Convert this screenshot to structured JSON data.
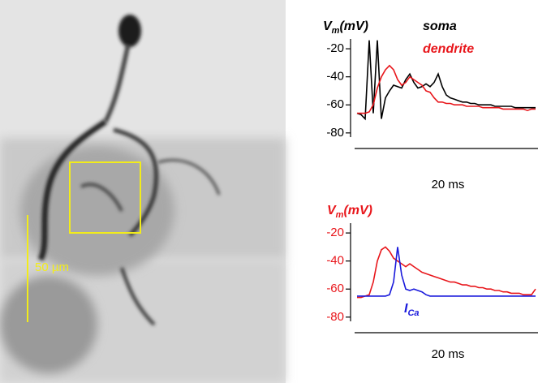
{
  "image": {
    "scale_bar_label": "50 µm"
  },
  "chart_data": [
    {
      "type": "line",
      "y_label": {
        "main": "V",
        "sub": "m",
        "unit": "(mV)"
      },
      "x_scale_label": "20 ms",
      "ylim": [
        -83,
        -13
      ],
      "yticks": [
        -20,
        -40,
        -60,
        -80
      ],
      "series": [
        {
          "name": "soma",
          "color": "#000000",
          "values": [
            -66,
            -67,
            -70,
            -14,
            -66,
            -14,
            -70,
            -55,
            -50,
            -46,
            -47,
            -48,
            -42,
            -38,
            -44,
            -48,
            -47,
            -45,
            -47,
            -44,
            -38,
            -47,
            -53,
            -55,
            -56,
            -57,
            -58,
            -58,
            -59,
            -59,
            -60,
            -60,
            -60,
            -60,
            -61,
            -61,
            -61,
            -61,
            -61,
            -62,
            -62,
            -62,
            -62,
            -62,
            -62
          ]
        },
        {
          "name": "dendrite",
          "color": "#e8161b",
          "values": [
            -66,
            -66,
            -66,
            -65,
            -60,
            -48,
            -40,
            -35,
            -32,
            -35,
            -42,
            -46,
            -44,
            -40,
            -42,
            -44,
            -46,
            -50,
            -51,
            -55,
            -58,
            -58,
            -59,
            -59,
            -60,
            -60,
            -60,
            -61,
            -61,
            -61,
            -61,
            -62,
            -62,
            -62,
            -62,
            -62,
            -63,
            -63,
            -63,
            -63,
            -63,
            -63,
            -64,
            -63,
            -63
          ]
        }
      ]
    },
    {
      "type": "line",
      "y_label": {
        "main": "V",
        "sub": "m",
        "unit": "(mV)"
      },
      "x_scale_label": "20 ms",
      "ylim": [
        -83,
        -13
      ],
      "yticks": [
        -20,
        -40,
        -60,
        -80
      ],
      "series": [
        {
          "color": "#e8161b",
          "values": [
            -66,
            -66,
            -65,
            -64,
            -55,
            -40,
            -32,
            -30,
            -33,
            -38,
            -40,
            -42,
            -44,
            -42,
            -44,
            -46,
            -48,
            -49,
            -50,
            -51,
            -52,
            -53,
            -54,
            -55,
            -55,
            -56,
            -57,
            -57,
            -58,
            -58,
            -59,
            -59,
            -60,
            -60,
            -61,
            -61,
            -62,
            -62,
            -63,
            -63,
            -63,
            -64,
            -64,
            -64,
            -60
          ]
        },
        {
          "name": "I",
          "name_sub": "Ca",
          "color": "#1a1adc",
          "values": [
            -65,
            -65,
            -65,
            -65,
            -65,
            -65,
            -65,
            -65,
            -64,
            -55,
            -30,
            -50,
            -60,
            -61,
            -60,
            -61,
            -62,
            -64,
            -65,
            -65,
            -65,
            -65,
            -65,
            -65,
            -65,
            -65,
            -65,
            -65,
            -65,
            -65,
            -65,
            -65,
            -65,
            -65,
            -65,
            -65,
            -65,
            -65,
            -65,
            -65,
            -65,
            -65,
            -65,
            -65,
            -65
          ]
        }
      ]
    }
  ]
}
